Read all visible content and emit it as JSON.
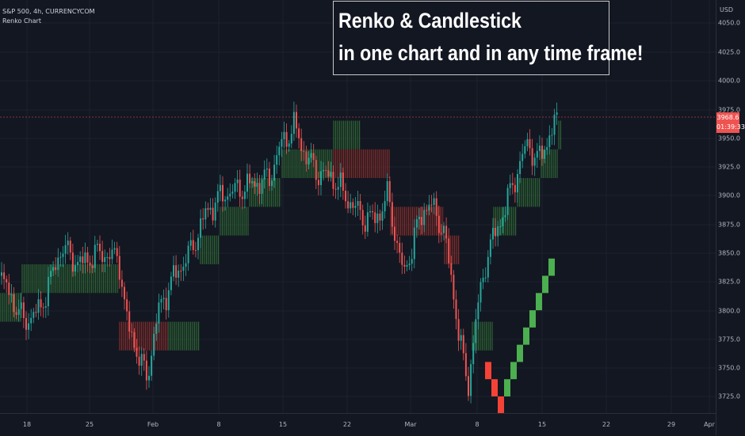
{
  "header": {
    "symbol_line": "S&P 500, 4h, CURRENCYCOM",
    "indicator_name": "Renko Chart"
  },
  "banner": {
    "line1": "Renko & Candlestick",
    "line2": "in one chart and in any time frame!"
  },
  "price_axis": {
    "currency": "USD",
    "labels": [
      "4050.0",
      "4025.0",
      "4000.0",
      "3975.0",
      "3950.0",
      "3925.0",
      "3900.0",
      "3875.0",
      "3850.0",
      "3825.0",
      "3800.0",
      "3775.0",
      "3750.0",
      "3725.0"
    ],
    "current_price": "3968.6",
    "countdown": "01:39:33"
  },
  "time_axis": {
    "labels": [
      "18",
      "25",
      "Feb",
      "8",
      "15",
      "22",
      "Mar",
      "8",
      "15",
      "22",
      "29",
      "Apr"
    ]
  },
  "colors": {
    "background": "#131722",
    "up": "#26a69a",
    "down": "#ef5350",
    "renko_up": "#4caf50",
    "renko_down": "#f44336",
    "price_line": "#ef5350"
  },
  "chart_data": {
    "type": "candlestick",
    "ylim": [
      3715,
      4065
    ],
    "renko_boxes": [
      {
        "date": "Mar 10",
        "low": 3740,
        "high": 3755,
        "direction": "down"
      },
      {
        "date": "Mar 11",
        "low": 3725,
        "high": 3740,
        "direction": "down"
      },
      {
        "date": "Mar 12",
        "low": 3710,
        "high": 3725,
        "direction": "down"
      },
      {
        "date": "Mar 13",
        "low": 3725,
        "high": 3740,
        "direction": "up"
      },
      {
        "date": "Mar 14",
        "low": 3740,
        "high": 3755,
        "direction": "up"
      },
      {
        "date": "Mar 15",
        "low": 3755,
        "high": 3770,
        "direction": "up"
      },
      {
        "date": "Mar 16",
        "low": 3770,
        "high": 3785,
        "direction": "up"
      },
      {
        "date": "Mar 17",
        "low": 3785,
        "high": 3800,
        "direction": "up"
      },
      {
        "date": "Mar 18",
        "low": 3800,
        "high": 3815,
        "direction": "up"
      },
      {
        "date": "Mar 19",
        "low": 3815,
        "high": 3830,
        "direction": "up"
      },
      {
        "date": "Mar 20",
        "low": 3830,
        "high": 3845,
        "direction": "up"
      }
    ]
  }
}
